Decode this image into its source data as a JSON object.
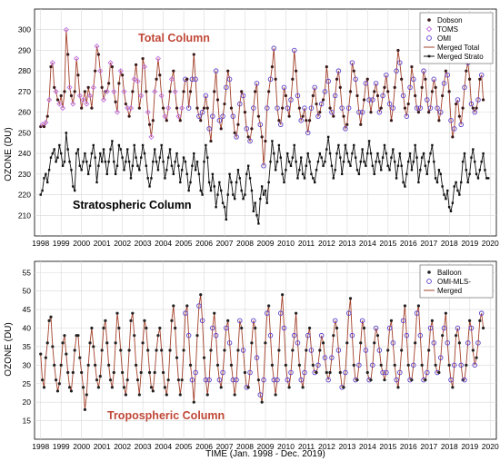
{
  "chart_data": [
    {
      "type": "line",
      "ylabel": "OZONE (DU)",
      "ylim": [
        200,
        310
      ],
      "xlim": [
        1997.7,
        2020.3
      ],
      "yticks": [
        210,
        220,
        230,
        240,
        250,
        260,
        270,
        280,
        290,
        300
      ],
      "xticks": [
        "1998",
        "1999",
        "2000",
        "2001",
        "2002",
        "2003",
        "2004",
        "2005",
        "2006",
        "2007",
        "2008",
        "2009",
        "2010",
        "2011",
        "2012",
        "2013",
        "2014",
        "2015",
        "2016",
        "2017",
        "2018",
        "2019",
        "2020"
      ],
      "grid": true,
      "legend_position": "top-right",
      "legend": [
        "Dobson",
        "TOMS",
        "OMI",
        "Merged Total",
        "Merged Strato"
      ],
      "annotations": [
        "Total Column",
        "Stratospheric Column"
      ],
      "colors": {
        "dobson": "#3a1a1a",
        "toms": "#c070e0",
        "omi": "#5a3ec8",
        "merged_total": "#a3402a",
        "merged_strato": "#111111"
      },
      "series": [
        {
          "name": "Merged Total",
          "start": 1998.0,
          "step": 0.0833,
          "values": [
            253,
            254,
            253,
            255,
            258,
            266,
            282,
            284,
            272,
            270,
            266,
            264,
            268,
            262,
            270,
            300,
            288,
            272,
            268,
            264,
            270,
            286,
            278,
            268,
            262,
            266,
            270,
            264,
            272,
            268,
            262,
            272,
            280,
            292,
            288,
            280,
            272,
            266,
            270,
            270,
            274,
            284,
            282,
            270,
            265,
            260,
            274,
            280,
            278,
            270,
            264,
            262,
            258,
            262,
            270,
            276,
            283,
            275,
            262,
            268,
            286,
            282,
            270,
            260,
            254,
            248,
            256,
            270,
            276,
            286,
            278,
            268,
            262,
            258,
            256,
            262,
            270,
            276,
            280,
            270,
            262,
            258,
            256,
            262,
            270,
            276,
            276,
            262,
            270,
            276,
            288,
            276,
            262,
            258,
            256,
            260,
            262,
            268,
            262,
            252,
            246,
            258,
            270,
            280,
            266,
            256,
            252,
            258,
            264,
            272,
            280,
            276,
            262,
            258,
            250,
            248,
            254,
            264,
            270,
            268,
            260,
            252,
            248,
            246,
            252,
            262,
            270,
            274,
            258,
            254,
            248,
            234,
            246,
            262,
            270,
            276,
            282,
            291,
            276,
            262,
            256,
            254,
            262,
            272,
            268,
            262,
            258,
            266,
            276,
            290,
            280,
            268,
            262,
            256,
            258,
            262,
            256,
            250,
            256,
            262,
            268,
            272,
            264,
            258,
            260,
            264,
            266,
            270,
            282,
            275,
            262,
            260,
            258,
            268,
            276,
            280,
            272,
            262,
            258,
            252,
            254,
            262,
            270,
            284,
            280,
            276,
            268,
            260,
            254,
            260,
            266,
            274,
            276,
            266,
            260,
            266,
            270,
            274,
            268,
            260,
            262,
            268,
            272,
            278,
            270,
            264,
            256,
            262,
            272,
            280,
            290,
            284,
            276,
            268,
            262,
            258,
            264,
            272,
            282,
            276,
            268,
            262,
            260,
            262,
            272,
            280,
            276,
            266,
            260,
            262,
            270,
            276,
            272,
            262,
            256,
            260,
            268,
            274,
            280,
            278,
            270,
            256,
            248,
            252,
            264,
            266,
            258,
            254,
            262,
            272,
            280,
            284,
            276,
            264,
            262,
            260,
            262,
            266,
            276,
            278,
            266
          ]
        },
        {
          "name": "Merged Strato",
          "start": 1998.0,
          "step": 0.0833,
          "values": [
            220,
            222,
            228,
            230,
            226,
            232,
            238,
            240,
            242,
            236,
            238,
            244,
            240,
            234,
            236,
            250,
            242,
            236,
            232,
            224,
            222,
            240,
            242,
            234,
            232,
            236,
            240,
            236,
            230,
            234,
            240,
            244,
            238,
            226,
            234,
            240,
            236,
            242,
            236,
            230,
            236,
            242,
            246,
            236,
            230,
            234,
            244,
            242,
            238,
            232,
            236,
            242,
            236,
            228,
            234,
            244,
            238,
            234,
            232,
            238,
            244,
            240,
            234,
            228,
            224,
            228,
            236,
            242,
            236,
            232,
            238,
            244,
            236,
            228,
            232,
            238,
            242,
            234,
            230,
            236,
            240,
            234,
            226,
            232,
            238,
            236,
            230,
            222,
            226,
            234,
            240,
            232,
            236,
            230,
            222,
            220,
            236,
            244,
            238,
            226,
            222,
            230,
            224,
            214,
            220,
            226,
            222,
            216,
            214,
            208,
            220,
            230,
            226,
            220,
            218,
            226,
            232,
            228,
            222,
            218,
            220,
            230,
            234,
            228,
            222,
            212,
            216,
            210,
            206,
            218,
            224,
            220,
            222,
            216,
            226,
            236,
            246,
            240,
            232,
            236,
            244,
            238,
            230,
            226,
            232,
            240,
            236,
            234,
            238,
            244,
            236,
            228,
            232,
            238,
            230,
            228,
            234,
            240,
            236,
            230,
            228,
            226,
            232,
            236,
            240,
            238,
            234,
            236,
            242,
            248,
            240,
            234,
            228,
            232,
            240,
            244,
            238,
            230,
            236,
            244,
            240,
            236,
            234,
            240,
            244,
            238,
            232,
            230,
            236,
            242,
            236,
            234,
            240,
            246,
            240,
            234,
            230,
            236,
            240,
            236,
            232,
            238,
            244,
            240,
            234,
            232,
            238,
            242,
            236,
            228,
            234,
            240,
            234,
            226,
            224,
            230,
            236,
            240,
            232,
            236,
            244,
            238,
            226,
            232,
            238,
            240,
            234,
            230,
            236,
            240,
            244,
            236,
            228,
            226,
            232,
            230,
            224,
            220,
            218,
            222,
            214,
            212,
            216,
            224,
            226,
            222,
            220,
            226,
            236,
            240,
            232,
            226,
            230,
            238,
            242,
            236,
            230,
            228,
            232,
            236,
            240,
            232,
            228,
            228
          ]
        }
      ]
    },
    {
      "type": "line",
      "ylabel": "OZONE (DU)",
      "xlabel": "TIME (Jan. 1998 - Dec. 2019)",
      "ylim": [
        10,
        58
      ],
      "xlim": [
        1997.7,
        2020.3
      ],
      "yticks": [
        15,
        20,
        25,
        30,
        35,
        40,
        45,
        50,
        55
      ],
      "xticks": [
        "1998",
        "1999",
        "2000",
        "2001",
        "2002",
        "2003",
        "2004",
        "2005",
        "2006",
        "2007",
        "2008",
        "2009",
        "2010",
        "2011",
        "2012",
        "2013",
        "2014",
        "2015",
        "2016",
        "2017",
        "2018",
        "2019",
        "2020"
      ],
      "grid": true,
      "legend_position": "top-right",
      "legend": [
        "Balloon",
        "OMI-MLS-",
        "Merged"
      ],
      "annotations": [
        "Tropospheric Column"
      ],
      "colors": {
        "balloon": "#222222",
        "omi_mls": "#5a3ec8",
        "merged": "#a3402a"
      },
      "series": [
        {
          "name": "Merged",
          "start": 1998.0,
          "step": 0.0833,
          "values": [
            33,
            26,
            24,
            32,
            36,
            42,
            43,
            35,
            30,
            26,
            23,
            25,
            30,
            36,
            38,
            33,
            28,
            24,
            23,
            28,
            34,
            38,
            38,
            32,
            28,
            24,
            18,
            22,
            30,
            36,
            40,
            35,
            30,
            26,
            24,
            27,
            34,
            40,
            42,
            36,
            30,
            26,
            24,
            28,
            36,
            44,
            40,
            34,
            28,
            24,
            22,
            26,
            34,
            42,
            44,
            38,
            30,
            26,
            22,
            28,
            36,
            42,
            40,
            34,
            28,
            24,
            23,
            28,
            34,
            38,
            40,
            34,
            28,
            24,
            22,
            26,
            34,
            42,
            46,
            40,
            32,
            26,
            22,
            26,
            34,
            44,
            46,
            38,
            30,
            26,
            20,
            28,
            38,
            46,
            49,
            42,
            32,
            26,
            22,
            26,
            34,
            40,
            44,
            38,
            30,
            26,
            24,
            28,
            34,
            40,
            42,
            36,
            30,
            26,
            22,
            26,
            34,
            42,
            40,
            34,
            28,
            24,
            24,
            28,
            36,
            42,
            40,
            32,
            26,
            22,
            20,
            26,
            36,
            44,
            46,
            38,
            30,
            26,
            22,
            26,
            34,
            44,
            49,
            40,
            30,
            26,
            24,
            28,
            34,
            38,
            44,
            36,
            30,
            26,
            24,
            28,
            34,
            38,
            40,
            34,
            30,
            28,
            28,
            30,
            34,
            38,
            36,
            32,
            28,
            26,
            28,
            32,
            38,
            42,
            40,
            34,
            28,
            24,
            24,
            28,
            36,
            44,
            48,
            38,
            30,
            26,
            26,
            30,
            36,
            42,
            40,
            34,
            28,
            26,
            26,
            30,
            36,
            40,
            38,
            34,
            30,
            28,
            26,
            28,
            34,
            40,
            42,
            36,
            30,
            26,
            24,
            28,
            34,
            42,
            46,
            38,
            30,
            26,
            26,
            30,
            36,
            44,
            46,
            38,
            30,
            26,
            26,
            28,
            34,
            40,
            42,
            36,
            30,
            28,
            28,
            32,
            38,
            40,
            44,
            36,
            30,
            26,
            24,
            30,
            38,
            40,
            36,
            30,
            26,
            26,
            30,
            36,
            42,
            40,
            34,
            30,
            32,
            36,
            42,
            44,
            40
          ]
        }
      ]
    }
  ]
}
